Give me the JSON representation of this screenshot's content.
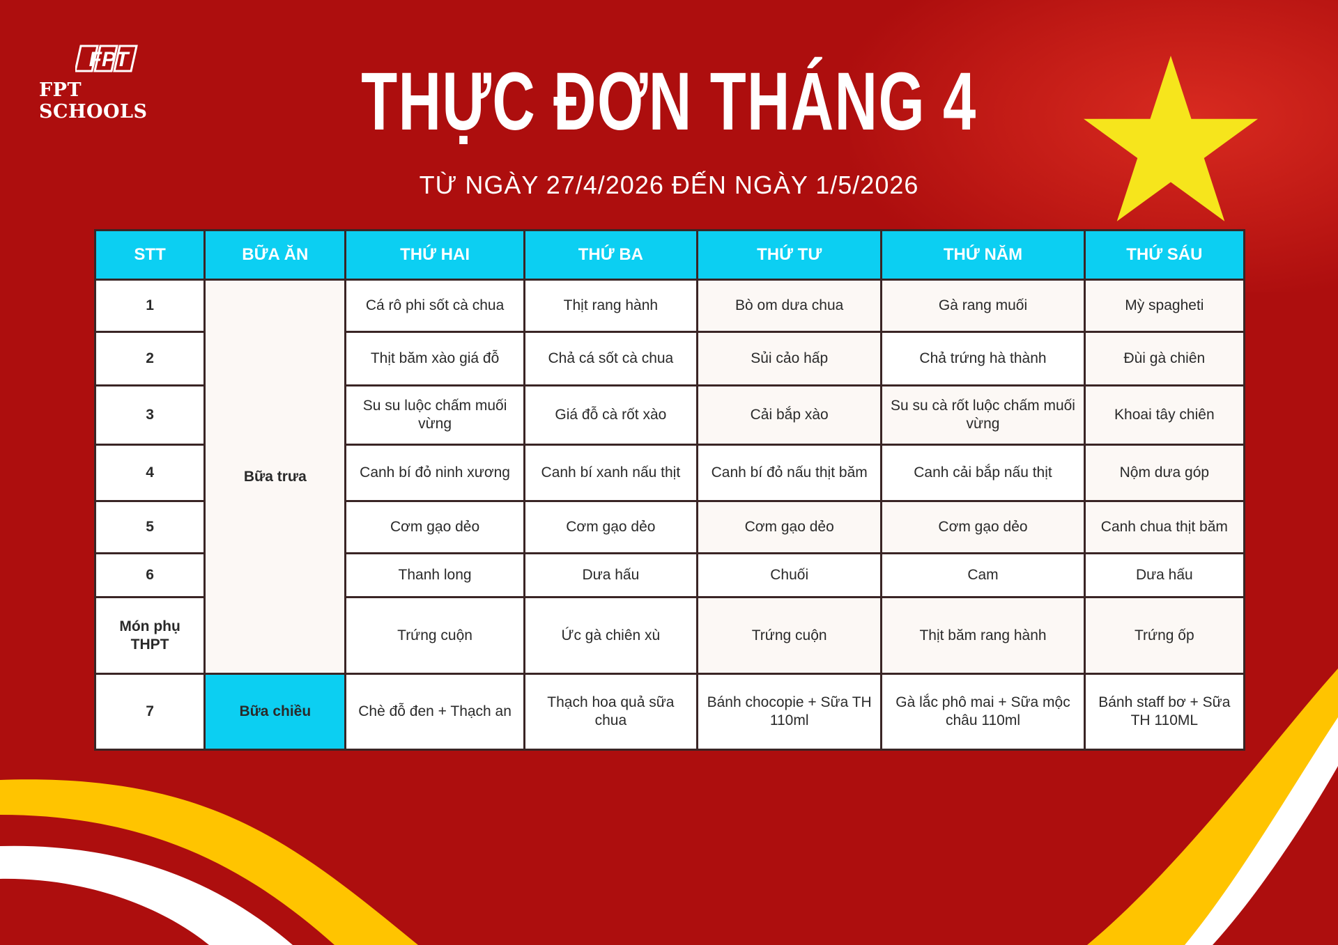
{
  "logo": {
    "brand_mark": "FPT",
    "name": "FPT SCHOOLS"
  },
  "title": "THỰC ĐƠN THÁNG 4",
  "subtitle": "TỪ NGÀY 27/4/2026 ĐẾN NGÀY 1/5/2026",
  "colors": {
    "background": "#ad0e0e",
    "header": "#0ccff2",
    "star": "#f6e51c",
    "accent_yellow": "#ffc400"
  },
  "table": {
    "headers": [
      "STT",
      "BỮA ĂN",
      "THỨ HAI",
      "THỨ BA",
      "THỨ TƯ",
      "THỨ NĂM",
      "THỨ SÁU"
    ],
    "lunch_label": "Bữa trưa",
    "afternoon_label": "Bữa chiều",
    "rows": [
      {
        "stt": "1",
        "cells": [
          "Cá rô phi sốt cà chua",
          "Thịt rang hành",
          "Bò om dưa chua",
          "Gà rang muối",
          "Mỳ spagheti"
        ]
      },
      {
        "stt": "2",
        "cells": [
          "Thịt băm xào giá đỗ",
          "Chả cá sốt cà chua",
          "Sủi cảo hấp",
          "Chả trứng hà thành",
          "Đùi gà chiên"
        ]
      },
      {
        "stt": "3",
        "cells": [
          "Su su luộc chấm muối vừng",
          "Giá đỗ cà rốt xào",
          "Cải bắp xào",
          "Su su cà rốt luộc chấm muối vừng",
          "Khoai tây chiên"
        ]
      },
      {
        "stt": "4",
        "cells": [
          "Canh bí đỏ ninh xương",
          "Canh bí xanh nấu thịt",
          "Canh bí đỏ nấu thịt băm",
          "Canh cải bắp nấu thịt",
          "Nộm dưa góp"
        ]
      },
      {
        "stt": "5",
        "cells": [
          "Cơm gạo dẻo",
          "Cơm gạo dẻo",
          "Cơm gạo dẻo",
          "Cơm gạo dẻo",
          "Canh chua thịt băm"
        ]
      },
      {
        "stt": "6",
        "cells": [
          "Thanh long",
          "Dưa hấu",
          "Chuối",
          "Cam",
          "Dưa hấu"
        ]
      },
      {
        "stt": "Món phụ THPT",
        "cells": [
          "Trứng cuộn",
          "Ức gà chiên xù",
          "Trứng cuộn",
          "Thịt băm rang hành",
          "Trứng ốp"
        ]
      }
    ],
    "afternoon_row": {
      "stt": "7",
      "cells": [
        "Chè đỗ đen + Thạch an",
        "Thạch hoa quả sữa chua",
        "Bánh chocopie + Sữa TH 110ml",
        "Gà lắc phô mai + Sữa mộc châu 110ml",
        "Bánh staff bơ + Sữa TH 110ML"
      ]
    }
  }
}
